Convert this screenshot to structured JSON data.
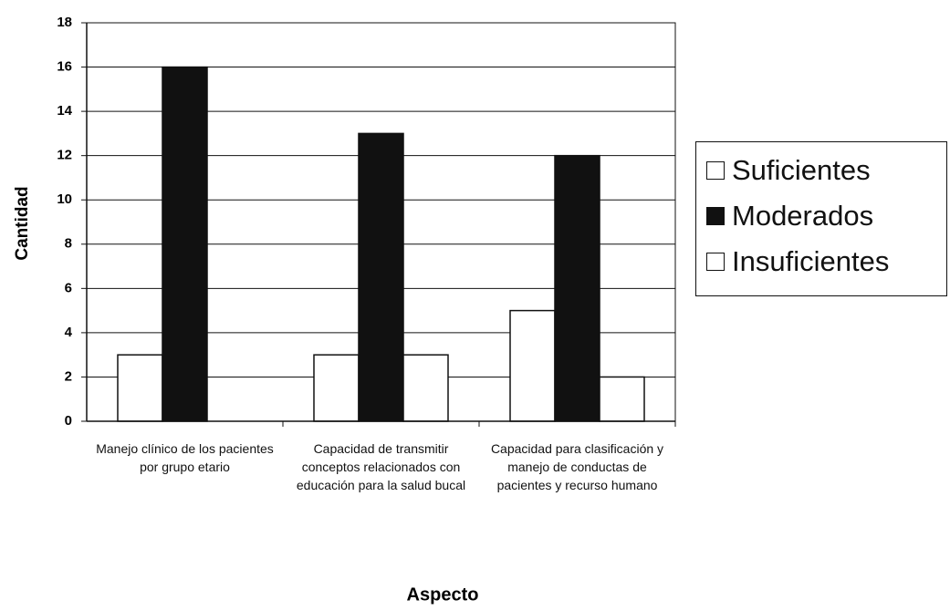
{
  "chart_data": {
    "type": "bar",
    "x_label": "Aspecto",
    "y_label": "Cantidad",
    "categories": [
      "Manejo clínico de los pacientes por grupo etario",
      "Capacidad de transmitir conceptos relacionados con educación para la salud bucal",
      "Capacidad para clasificación y manejo de conductas de pacientes y recurso humano"
    ],
    "series": [
      {
        "name": "Suficientes",
        "color": "#ffffff",
        "values": [
          3,
          3,
          5
        ]
      },
      {
        "name": "Moderados",
        "color": "#111111",
        "values": [
          16,
          13,
          12
        ]
      },
      {
        "name": "Insuficientes",
        "color": "#ffffff",
        "values": [
          0,
          3,
          2
        ]
      }
    ],
    "ylim": [
      0,
      18
    ],
    "yticks": [
      0,
      2,
      4,
      6,
      8,
      10,
      12,
      14,
      16,
      18
    ],
    "grid": true,
    "legend": "right"
  }
}
